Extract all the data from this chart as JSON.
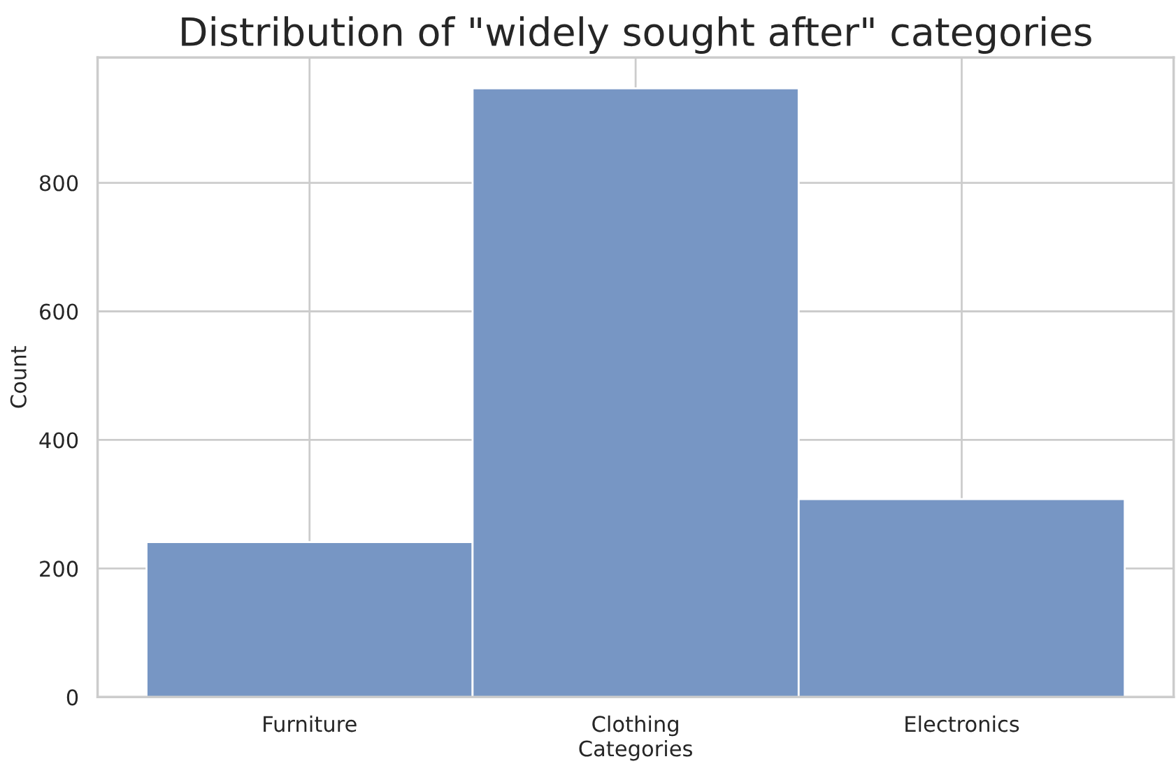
{
  "chart_data": {
    "type": "bar",
    "title": "Distribution of \"widely sought after\" categories",
    "xlabel": "Categories",
    "ylabel": "Count",
    "categories": [
      "Furniture",
      "Clothing",
      "Electronics"
    ],
    "values": [
      241,
      947,
      308
    ],
    "color": "#7796c4",
    "ylim": [
      0,
      995
    ],
    "yticks": [
      0,
      200,
      400,
      600,
      800
    ],
    "grid": true
  }
}
